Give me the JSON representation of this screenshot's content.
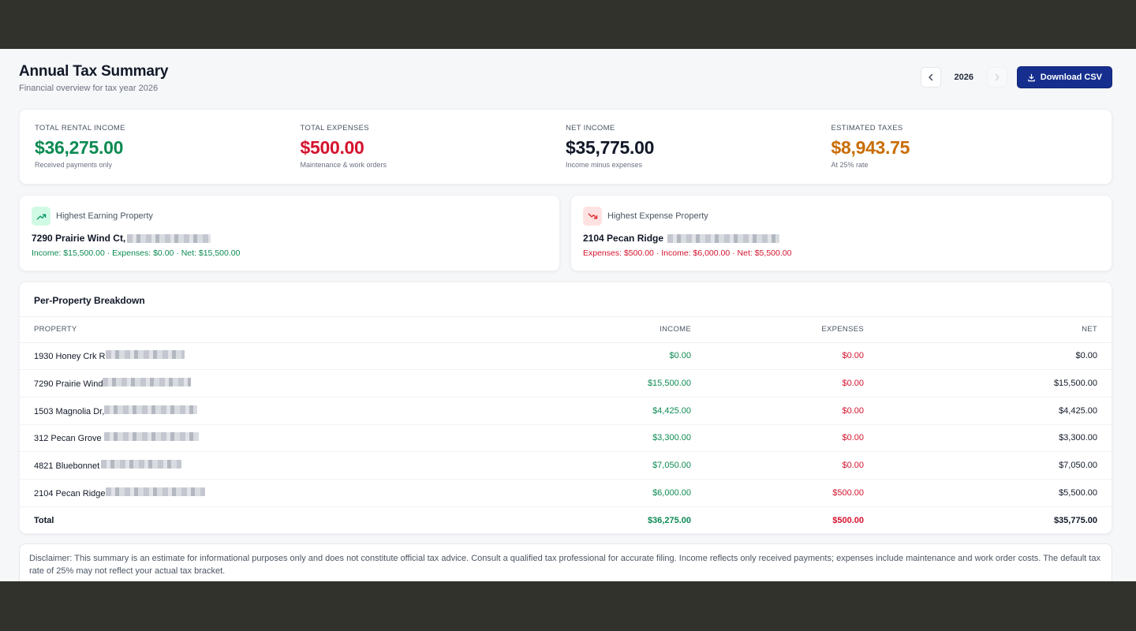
{
  "header": {
    "title": "Annual Tax Summary",
    "subtitle": "Financial overview for tax year 2026",
    "year": "2026",
    "download_label": "Download CSV"
  },
  "stats": [
    {
      "label": "TOTAL RENTAL INCOME",
      "value": "$36,275.00",
      "caption": "Received payments only",
      "color": "#0c8a52"
    },
    {
      "label": "TOTAL EXPENSES",
      "value": "$500.00",
      "caption": "Maintenance & work orders",
      "color": "#d5132e"
    },
    {
      "label": "NET INCOME",
      "value": "$35,775.00",
      "caption": "Income minus expenses",
      "color": "#111827"
    },
    {
      "label": "ESTIMATED TAXES",
      "value": "$8,943.75",
      "caption": "At 25% rate",
      "color": "#c86d05"
    }
  ],
  "highest_earning": {
    "label": "Highest Earning Property",
    "name": "7290 Prairie Wind Ct,",
    "summary": "Income: $15,500.00 · Expenses: $0.00 · Net: $15,500.00",
    "icon": "trending-up-icon"
  },
  "highest_expense": {
    "label": "Highest Expense Property",
    "name": "2104 Pecan Ridge",
    "summary": "Expenses: $500.00 · Income: $6,000.00 · Net: $5,500.00",
    "icon": "trending-down-icon"
  },
  "breakdown": {
    "title": "Per-Property Breakdown",
    "columns": [
      "PROPERTY",
      "INCOME",
      "EXPENSES",
      "NET"
    ],
    "rows": [
      {
        "property": "1930 Honey Crk R",
        "income": "$0.00",
        "expenses": "$0.00",
        "net": "$0.00"
      },
      {
        "property": "7290 Prairie Wind",
        "income": "$15,500.00",
        "expenses": "$0.00",
        "net": "$15,500.00"
      },
      {
        "property": "1503 Magnolia Dr,",
        "income": "$4,425.00",
        "expenses": "$0.00",
        "net": "$4,425.00"
      },
      {
        "property": "312 Pecan Grove",
        "income": "$3,300.00",
        "expenses": "$0.00",
        "net": "$3,300.00"
      },
      {
        "property": "4821 Bluebonnet",
        "income": "$7,050.00",
        "expenses": "$0.00",
        "net": "$7,050.00"
      },
      {
        "property": "2104 Pecan Ridge",
        "income": "$6,000.00",
        "expenses": "$500.00",
        "net": "$5,500.00"
      }
    ],
    "total": {
      "label": "Total",
      "income": "$36,275.00",
      "expenses": "$500.00",
      "net": "$35,775.00"
    }
  },
  "disclaimer": "Disclaimer: This summary is an estimate for informational purposes only and does not constitute official tax advice. Consult a qualified tax professional for accurate filing. Income reflects only received payments; expenses include maintenance and work order costs. The default tax rate of 25% may not reflect your actual tax bracket."
}
